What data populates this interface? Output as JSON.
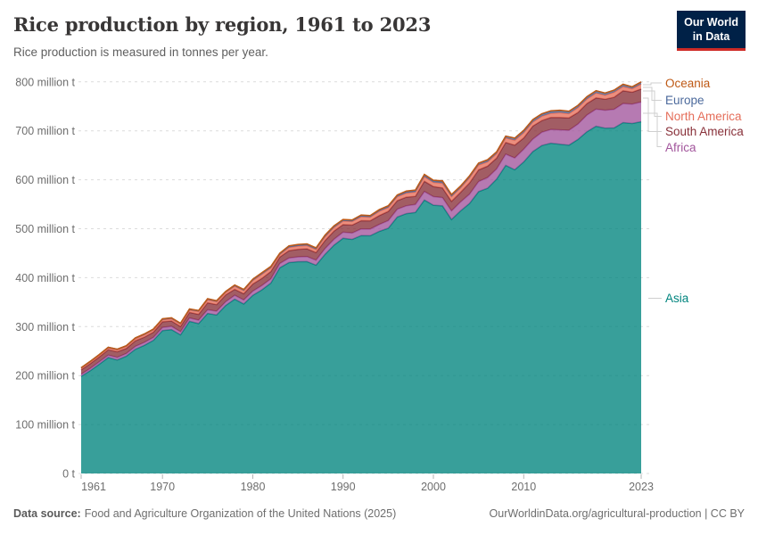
{
  "header": {
    "title": "Rice production by region, 1961 to 2023",
    "subtitle": "Rice production is measured in tonnes per year."
  },
  "logo": {
    "line1": "Our World",
    "line2": "in Data",
    "bg_color": "#002147",
    "accent_color": "#cf2b26"
  },
  "legend": {
    "position": "right",
    "items": [
      {
        "label": "Oceania",
        "color": "#BE5915"
      },
      {
        "label": "Europe",
        "color": "#4C6A9C"
      },
      {
        "label": "North America",
        "color": "#E56E5A"
      },
      {
        "label": "South America",
        "color": "#883039"
      },
      {
        "label": "Africa",
        "color": "#A2559C"
      },
      {
        "label": "Asia",
        "color": "#00847E"
      }
    ]
  },
  "chart_data": {
    "type": "area",
    "stacked": true,
    "title": "Rice production by region, 1961 to 2023",
    "xlabel": "",
    "ylabel": "Rice production",
    "values_unit": "million tonnes per year",
    "xlim": [
      1961,
      2023
    ],
    "ylim": [
      0,
      800
    ],
    "grid": "horizontal dashed",
    "x": [
      1961,
      1962,
      1963,
      1964,
      1965,
      1966,
      1967,
      1968,
      1969,
      1970,
      1971,
      1972,
      1973,
      1974,
      1975,
      1976,
      1977,
      1978,
      1979,
      1980,
      1981,
      1982,
      1983,
      1984,
      1985,
      1986,
      1987,
      1988,
      1989,
      1990,
      1991,
      1992,
      1993,
      1994,
      1995,
      1996,
      1997,
      1998,
      1999,
      2000,
      2001,
      2002,
      2003,
      2004,
      2005,
      2006,
      2007,
      2008,
      2009,
      2010,
      2011,
      2012,
      2013,
      2014,
      2015,
      2016,
      2017,
      2018,
      2019,
      2020,
      2021,
      2022,
      2023
    ],
    "x_ticks": [
      1961,
      1970,
      1980,
      1990,
      2000,
      2010,
      2023
    ],
    "y_ticks": [
      {
        "value": 0,
        "label": "0 t"
      },
      {
        "value": 100,
        "label": "100 million t"
      },
      {
        "value": 200,
        "label": "200 million t"
      },
      {
        "value": 300,
        "label": "300 million t"
      },
      {
        "value": 400,
        "label": "400 million t"
      },
      {
        "value": 500,
        "label": "500 million t"
      },
      {
        "value": 600,
        "label": "600 million t"
      },
      {
        "value": 700,
        "label": "700 million t"
      },
      {
        "value": 800,
        "label": "800 million t"
      }
    ],
    "series": [
      {
        "name": "Asia",
        "color": "#00847E",
        "values": [
          198.3,
          209.8,
          223.2,
          236.8,
          231.9,
          239.5,
          253.8,
          261.8,
          271.9,
          292.0,
          294.0,
          283.2,
          310.8,
          306.2,
          327.0,
          323.9,
          343.2,
          356.1,
          346.2,
          363.9,
          375.0,
          388.8,
          420.3,
          430.8,
          432.6,
          432.8,
          425.5,
          447.8,
          466.5,
          480.5,
          478.2,
          485.9,
          485.7,
          494.5,
          501.0,
          523.9,
          530.7,
          533.1,
          558.7,
          548.1,
          546.7,
          518.7,
          536.3,
          551.5,
          575.7,
          582.7,
          601.3,
          629.3,
          620.4,
          636.4,
          657.6,
          670.0,
          674.7,
          672.5,
          670.6,
          682.4,
          698.2,
          709.2,
          705.5,
          705.9,
          716.8,
          714.9,
          718.6
        ]
      },
      {
        "name": "Africa",
        "color": "#A2559C",
        "values": [
          4.4,
          4.6,
          4.8,
          5.0,
          5.3,
          5.4,
          5.7,
          5.9,
          6.1,
          6.4,
          6.6,
          6.4,
          6.8,
          7.1,
          7.5,
          7.6,
          7.6,
          8.0,
          8.2,
          8.6,
          8.9,
          8.9,
          8.6,
          9.3,
          9.8,
          10.4,
          10.2,
          11.7,
          12.0,
          12.4,
          13.1,
          13.5,
          13.5,
          14.3,
          15.5,
          16.0,
          16.2,
          16.5,
          17.2,
          17.4,
          16.8,
          17.7,
          18.3,
          19.0,
          20.6,
          21.9,
          21.0,
          22.9,
          24.3,
          26.0,
          25.5,
          27.0,
          28.0,
          29.5,
          30.5,
          31.5,
          34.0,
          35.0,
          36.5,
          38.0,
          39.0,
          39.5,
          40.3
        ]
      },
      {
        "name": "South America",
        "color": "#883039",
        "values": [
          9.0,
          9.8,
          10.0,
          11.0,
          11.4,
          10.5,
          11.5,
          10.8,
          10.7,
          11.5,
          10.9,
          10.8,
          11.3,
          11.8,
          14.2,
          13.5,
          14.0,
          12.0,
          12.8,
          14.6,
          14.4,
          14.8,
          13.2,
          15.1,
          15.6,
          15.9,
          15.7,
          16.5,
          16.8,
          15.5,
          16.2,
          17.0,
          17.1,
          17.9,
          18.8,
          17.5,
          17.6,
          16.5,
          21.0,
          20.5,
          19.8,
          19.5,
          19.8,
          23.0,
          23.9,
          23.2,
          22.0,
          24.0,
          26.0,
          23.0,
          26.5,
          24.0,
          24.5,
          25.2,
          25.4,
          23.5,
          23.5,
          23.0,
          22.5,
          24.6,
          26.0,
          24.5,
          26.5
        ]
      },
      {
        "name": "North America",
        "color": "#E56E5A",
        "values": [
          2.9,
          3.3,
          3.6,
          3.7,
          3.9,
          4.1,
          4.4,
          4.7,
          4.5,
          4.2,
          4.5,
          4.6,
          4.9,
          5.7,
          6.1,
          5.8,
          5.0,
          6.4,
          6.2,
          7.0,
          8.7,
          7.3,
          5.0,
          6.5,
          6.5,
          6.4,
          6.1,
          7.5,
          7.3,
          7.2,
          7.3,
          8.2,
          7.3,
          9.0,
          8.1,
          8.0,
          8.4,
          8.7,
          9.5,
          8.7,
          9.8,
          9.6,
          9.1,
          10.5,
          10.1,
          8.8,
          9.0,
          9.3,
          10.0,
          11.0,
          8.4,
          9.0,
          8.6,
          10.0,
          8.7,
          10.2,
          9.3,
          10.2,
          8.4,
          10.3,
          8.7,
          7.3,
          10.2
        ]
      },
      {
        "name": "Europe",
        "color": "#4C6A9C",
        "values": [
          1.2,
          1.3,
          1.2,
          1.3,
          1.3,
          1.3,
          1.4,
          1.5,
          1.5,
          1.6,
          1.7,
          1.7,
          1.8,
          1.8,
          1.8,
          1.7,
          1.7,
          1.9,
          2.0,
          2.2,
          2.2,
          2.3,
          2.3,
          2.4,
          2.6,
          2.6,
          2.7,
          2.6,
          2.5,
          2.4,
          2.3,
          2.3,
          2.2,
          2.2,
          2.5,
          2.6,
          2.7,
          2.8,
          3.2,
          3.2,
          3.1,
          3.2,
          3.1,
          3.4,
          3.4,
          3.4,
          3.5,
          3.5,
          4.2,
          4.4,
          4.3,
          4.1,
          4.0,
          4.0,
          4.1,
          4.1,
          4.2,
          4.0,
          4.0,
          4.1,
          4.0,
          3.4,
          3.9
        ]
      },
      {
        "name": "Oceania",
        "color": "#BE5915",
        "values": [
          0.2,
          0.2,
          0.2,
          0.2,
          0.2,
          0.2,
          0.3,
          0.3,
          0.3,
          0.3,
          0.3,
          0.3,
          0.4,
          0.4,
          0.5,
          0.5,
          0.5,
          0.6,
          0.6,
          0.7,
          0.8,
          0.9,
          0.6,
          0.9,
          0.9,
          0.9,
          0.8,
          0.9,
          0.9,
          1.0,
          0.9,
          1.1,
          1.2,
          1.1,
          1.1,
          1.0,
          1.4,
          1.4,
          1.4,
          1.1,
          1.8,
          1.3,
          0.4,
          0.6,
          0.3,
          1.0,
          0.2,
          0.1,
          0.1,
          0.2,
          0.7,
          0.9,
          1.2,
          0.8,
          0.7,
          0.3,
          0.8,
          0.6,
          0.1,
          0.1,
          0.5,
          0.4,
          0.5
        ]
      }
    ]
  },
  "footer": {
    "source_label": "Data source:",
    "source_text": "Food and Agriculture Organization of the United Nations (2025)",
    "credit": "OurWorldinData.org/agricultural-production | CC BY"
  }
}
